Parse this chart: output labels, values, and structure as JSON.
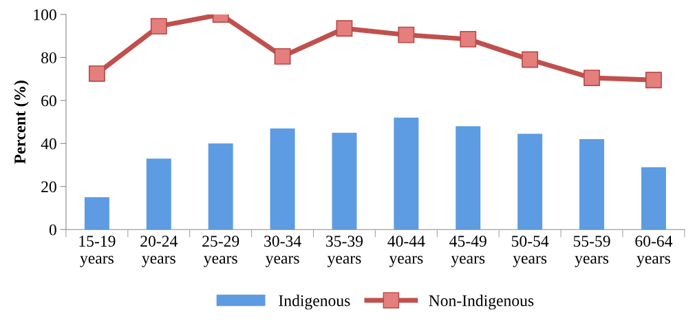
{
  "chart_data": {
    "type": "bar",
    "ylabel": "Percent (%)",
    "categories": [
      "15-19\nyears",
      "20-24\nyears",
      "25-29\nyears",
      "30-34\nyears",
      "35-39\nyears",
      "40-44\nyears",
      "45-49\nyears",
      "50-54\nyears",
      "55-59\nyears",
      "60-64\nyears"
    ],
    "series": [
      {
        "name": "Indigenous",
        "color": "#5d9be3",
        "values": [
          15,
          33,
          40,
          47,
          45,
          52,
          48,
          44.5,
          42,
          29
        ]
      },
      {
        "name": "Non-Indigenous",
        "type": "line",
        "color": "#c0504d",
        "marker": "square",
        "values": [
          72.5,
          94.5,
          100,
          80.5,
          93.5,
          90.5,
          88.5,
          79,
          70.5,
          69.5
        ]
      }
    ],
    "ylim": [
      0,
      100
    ],
    "yticks": [
      0,
      20,
      40,
      60,
      80,
      100
    ],
    "grid": false,
    "legend": "bottom"
  }
}
